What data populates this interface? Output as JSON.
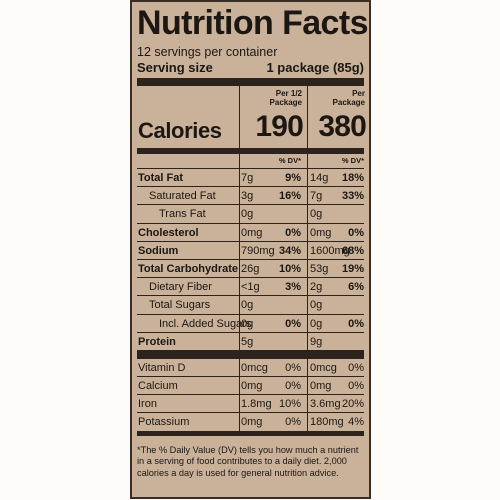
{
  "label": {
    "title": "Nutrition Facts",
    "servings_per_container": "12 servings per container",
    "serving_size_label": "Serving size",
    "serving_size_value": "1 package (85g)",
    "columns": [
      {
        "heading_line1": "Per 1/2",
        "heading_line2": "Package",
        "calories": "190"
      },
      {
        "heading_line1": "Per",
        "heading_line2": "Package",
        "calories": "380"
      }
    ],
    "calories_label": "Calories",
    "dv_header": "% DV*",
    "nutrients": [
      {
        "name": "Total Fat",
        "a1": "7g",
        "p1": "9%",
        "a2": "14g",
        "p2": "18%",
        "style": "bold"
      },
      {
        "name": "Saturated Fat",
        "a1": "3g",
        "p1": "16%",
        "a2": "7g",
        "p2": "33%",
        "style": "ind1"
      },
      {
        "name": "Trans Fat",
        "a1": "0g",
        "p1": "",
        "a2": "0g",
        "p2": "",
        "style": "ind2"
      },
      {
        "name": "Cholesterol",
        "a1": "0mg",
        "p1": "0%",
        "a2": "0mg",
        "p2": "0%",
        "style": "bold"
      },
      {
        "name": "Sodium",
        "a1": "790mg",
        "p1": "34%",
        "a2": "1600mg",
        "p2": "68%",
        "style": "bold"
      },
      {
        "name": "Total Carbohydrate",
        "a1": "26g",
        "p1": "10%",
        "a2": "53g",
        "p2": "19%",
        "style": "bold"
      },
      {
        "name": "Dietary Fiber",
        "a1": "<1g",
        "p1": "3%",
        "a2": "2g",
        "p2": "6%",
        "style": "ind1"
      },
      {
        "name": "Total Sugars",
        "a1": "0g",
        "p1": "",
        "a2": "0g",
        "p2": "",
        "style": "ind1"
      },
      {
        "name": "Incl. Added Sugars",
        "a1": "0g",
        "p1": "0%",
        "a2": "0g",
        "p2": "0%",
        "style": "ind2"
      },
      {
        "name": "Protein",
        "a1": "5g",
        "p1": "",
        "a2": "9g",
        "p2": "",
        "style": "bold"
      }
    ],
    "vitamins": [
      {
        "name": "Vitamin D",
        "a1": "0mcg",
        "p1": "0%",
        "a2": "0mcg",
        "p2": "0%"
      },
      {
        "name": "Calcium",
        "a1": "0mg",
        "p1": "0%",
        "a2": "0mg",
        "p2": "0%"
      },
      {
        "name": "Iron",
        "a1": "1.8mg",
        "p1": "10%",
        "a2": "3.6mg",
        "p2": "20%"
      },
      {
        "name": "Potassium",
        "a1": "0mg",
        "p1": "0%",
        "a2": "180mg",
        "p2": "4%"
      }
    ],
    "footnote": "*The % Daily Value (DV) tells you how much a nutrient in a serving of food contributes to a daily diet. 2,000 calories a day is used for general nutrition advice.",
    "colors": {
      "panel": "#c9b19a",
      "ink": "#2b231c"
    }
  }
}
